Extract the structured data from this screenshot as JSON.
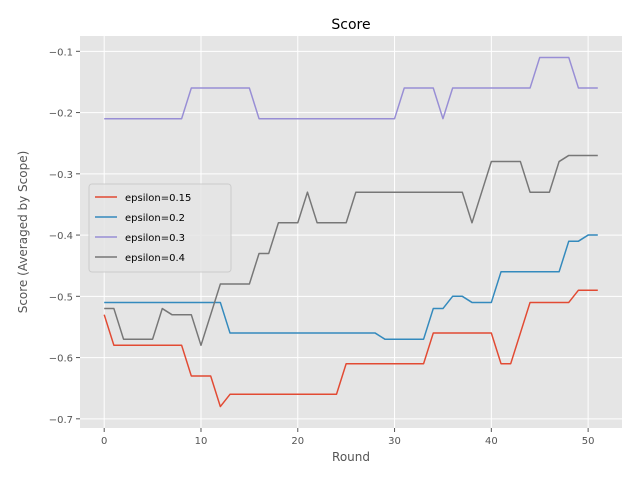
{
  "chart_data": {
    "type": "line",
    "title": "Score",
    "xlabel": "Round",
    "ylabel": "Score (Averaged by Scope)",
    "xlim": [
      -2.5,
      53.5
    ],
    "ylim": [
      -0.715,
      -0.075
    ],
    "xticks": [
      0,
      10,
      20,
      30,
      40,
      50
    ],
    "yticks": [
      -0.7,
      -0.6,
      -0.5,
      -0.4,
      -0.3,
      -0.2,
      -0.1
    ],
    "ytick_labels": [
      "−0.7",
      "−0.6",
      "−0.5",
      "−0.4",
      "−0.3",
      "−0.2",
      "−0.1"
    ],
    "grid": true,
    "legend_position": "center-left",
    "x": [
      0,
      1,
      2,
      3,
      4,
      5,
      6,
      7,
      8,
      9,
      10,
      11,
      12,
      13,
      14,
      15,
      16,
      17,
      18,
      19,
      20,
      21,
      22,
      23,
      24,
      25,
      26,
      27,
      28,
      29,
      30,
      31,
      32,
      33,
      34,
      35,
      36,
      37,
      38,
      39,
      40,
      41,
      42,
      43,
      44,
      45,
      46,
      47,
      48,
      49,
      50,
      51
    ],
    "series": [
      {
        "name": "epsilon=0.15",
        "color": "#E24A33",
        "values": [
          -0.53,
          -0.58,
          -0.58,
          -0.58,
          -0.58,
          -0.58,
          -0.58,
          -0.58,
          -0.58,
          -0.63,
          -0.63,
          -0.63,
          -0.68,
          -0.66,
          -0.66,
          -0.66,
          -0.66,
          -0.66,
          -0.66,
          -0.66,
          -0.66,
          -0.66,
          -0.66,
          -0.66,
          -0.66,
          -0.61,
          -0.61,
          -0.61,
          -0.61,
          -0.61,
          -0.61,
          -0.61,
          -0.61,
          -0.61,
          -0.56,
          -0.56,
          -0.56,
          -0.56,
          -0.56,
          -0.56,
          -0.56,
          -0.61,
          -0.61,
          -0.56,
          -0.51,
          -0.51,
          -0.51,
          -0.51,
          -0.51,
          -0.49,
          -0.49,
          -0.49
        ]
      },
      {
        "name": "epsilon=0.2",
        "color": "#348ABD",
        "values": [
          -0.51,
          -0.51,
          -0.51,
          -0.51,
          -0.51,
          -0.51,
          -0.51,
          -0.51,
          -0.51,
          -0.51,
          -0.51,
          -0.51,
          -0.51,
          -0.56,
          -0.56,
          -0.56,
          -0.56,
          -0.56,
          -0.56,
          -0.56,
          -0.56,
          -0.56,
          -0.56,
          -0.56,
          -0.56,
          -0.56,
          -0.56,
          -0.56,
          -0.56,
          -0.57,
          -0.57,
          -0.57,
          -0.57,
          -0.57,
          -0.52,
          -0.52,
          -0.5,
          -0.5,
          -0.51,
          -0.51,
          -0.51,
          -0.46,
          -0.46,
          -0.46,
          -0.46,
          -0.46,
          -0.46,
          -0.46,
          -0.41,
          -0.41,
          -0.4,
          -0.4
        ]
      },
      {
        "name": "epsilon=0.3",
        "color": "#988ED5",
        "values": [
          -0.21,
          -0.21,
          -0.21,
          -0.21,
          -0.21,
          -0.21,
          -0.21,
          -0.21,
          -0.21,
          -0.16,
          -0.16,
          -0.16,
          -0.16,
          -0.16,
          -0.16,
          -0.16,
          -0.21,
          -0.21,
          -0.21,
          -0.21,
          -0.21,
          -0.21,
          -0.21,
          -0.21,
          -0.21,
          -0.21,
          -0.21,
          -0.21,
          -0.21,
          -0.21,
          -0.21,
          -0.16,
          -0.16,
          -0.16,
          -0.16,
          -0.21,
          -0.16,
          -0.16,
          -0.16,
          -0.16,
          -0.16,
          -0.16,
          -0.16,
          -0.16,
          -0.16,
          -0.11,
          -0.11,
          -0.11,
          -0.11,
          -0.16,
          -0.16,
          -0.16
        ]
      },
      {
        "name": "epsilon=0.4",
        "color": "#777777",
        "values": [
          -0.52,
          -0.52,
          -0.57,
          -0.57,
          -0.57,
          -0.57,
          -0.52,
          -0.53,
          -0.53,
          -0.53,
          -0.58,
          -0.53,
          -0.48,
          -0.48,
          -0.48,
          -0.48,
          -0.43,
          -0.43,
          -0.38,
          -0.38,
          -0.38,
          -0.33,
          -0.38,
          -0.38,
          -0.38,
          -0.38,
          -0.33,
          -0.33,
          -0.33,
          -0.33,
          -0.33,
          -0.33,
          -0.33,
          -0.33,
          -0.33,
          -0.33,
          -0.33,
          -0.33,
          -0.38,
          -0.33,
          -0.28,
          -0.28,
          -0.28,
          -0.28,
          -0.33,
          -0.33,
          -0.33,
          -0.28,
          -0.27,
          -0.27,
          -0.27,
          -0.27
        ]
      }
    ]
  }
}
